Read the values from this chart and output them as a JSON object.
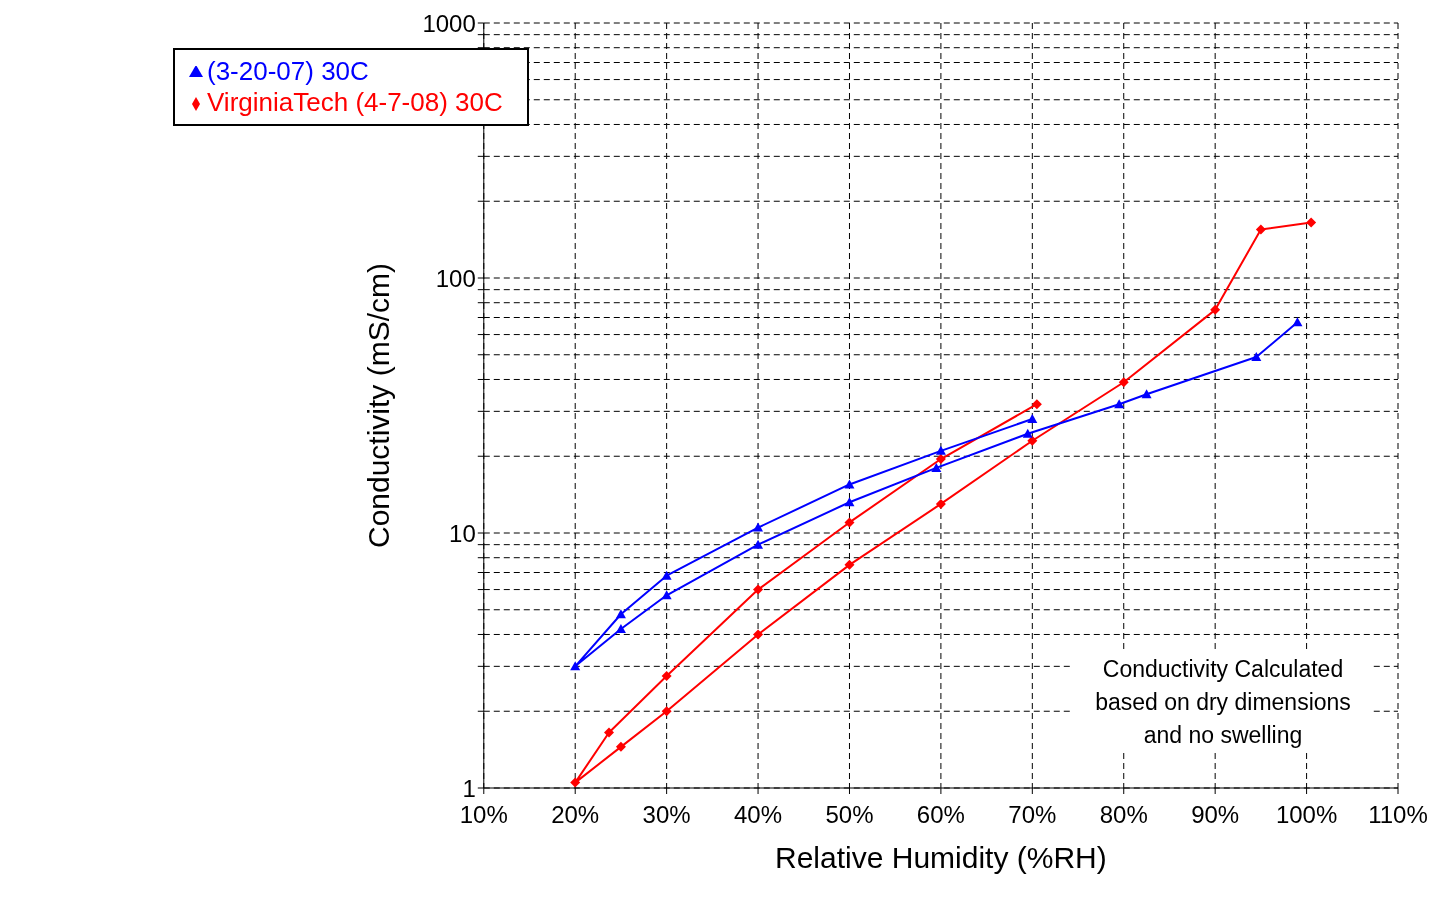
{
  "chart_data": {
    "type": "line",
    "xlabel": "Relative Humidity (%RH)",
    "ylabel": "Conductivity (mS/cm)",
    "log": "y",
    "grid": true,
    "legend": "top left",
    "line_style": "solid",
    "xlim": [
      10,
      110
    ],
    "xticks": [
      {
        "value": 10,
        "label": "10%"
      },
      {
        "value": 20,
        "label": "20%"
      },
      {
        "value": 30,
        "label": "30%"
      },
      {
        "value": 40,
        "label": "40%"
      },
      {
        "value": 50,
        "label": "50%"
      },
      {
        "value": 60,
        "label": "60%"
      },
      {
        "value": 70,
        "label": "70%"
      },
      {
        "value": 80,
        "label": "80%"
      },
      {
        "value": 90,
        "label": "90%"
      },
      {
        "value": 100,
        "label": "100%"
      },
      {
        "value": 110,
        "label": "110%"
      }
    ],
    "ylim": [
      1,
      1000
    ],
    "yticks": [
      1,
      {
        "value": 2,
        "label": null
      },
      {
        "value": 3,
        "label": null
      },
      {
        "value": 4,
        "label": null
      },
      {
        "value": 5,
        "label": null
      },
      {
        "value": 6,
        "label": null
      },
      {
        "value": 7,
        "label": null
      },
      {
        "value": 8,
        "label": null
      },
      {
        "value": 9,
        "label": null
      },
      10,
      {
        "value": 20,
        "label": null
      },
      {
        "value": 30,
        "label": null
      },
      {
        "value": 40,
        "label": null
      },
      {
        "value": 50,
        "label": null
      },
      {
        "value": 60,
        "label": null
      },
      {
        "value": 70,
        "label": null
      },
      {
        "value": 80,
        "label": null
      },
      {
        "value": 90,
        "label": null
      },
      100,
      {
        "value": 200,
        "label": null
      },
      {
        "value": 300,
        "label": null
      },
      {
        "value": 400,
        "label": null
      },
      {
        "value": 500,
        "label": null
      },
      {
        "value": 600,
        "label": null
      },
      {
        "value": 700,
        "label": null
      },
      {
        "value": 800,
        "label": null
      },
      {
        "value": 900,
        "label": null
      },
      1000
    ],
    "series": [
      {
        "name": "VirginiaTech (4-7-08) 30C",
        "color": "#ff0000",
        "marker": "diamond",
        "x": [
          70.5,
          60,
          50,
          40,
          30,
          23.7,
          20,
          25,
          30,
          40,
          50,
          60,
          70,
          80,
          90,
          95,
          100.5
        ],
        "values": [
          32,
          19.5,
          11,
          6,
          2.75,
          1.65,
          1.05,
          1.45,
          2,
          4,
          7.5,
          13,
          23,
          39,
          75,
          155,
          165
        ]
      },
      {
        "name": "(3-20-07) 30C",
        "color": "#0000ff",
        "marker": "triangle",
        "x": [
          70,
          60,
          50,
          40,
          30,
          25,
          20,
          25,
          30,
          40,
          50,
          59.5,
          69.5,
          79.5,
          82.5,
          94.5,
          99
        ],
        "values": [
          28,
          21,
          15.5,
          10.5,
          6.8,
          4.8,
          3,
          4.2,
          5.7,
          9,
          13.2,
          18,
          24.5,
          32,
          35,
          49,
          67
        ]
      }
    ],
    "annotations": [
      "Conductivity Calculated based on dry dimensions and no swelling"
    ]
  }
}
